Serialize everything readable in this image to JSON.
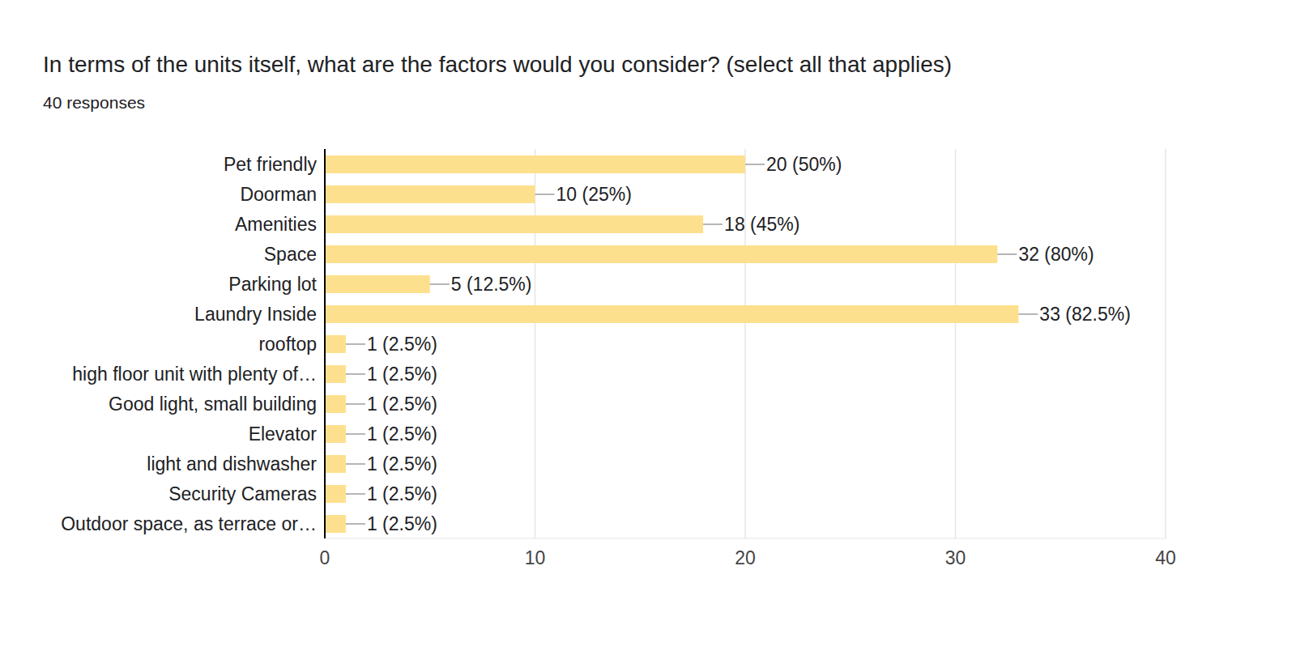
{
  "chart_data": {
    "type": "bar",
    "title": "In terms of the units itself, what are the factors would you consider? (select all that applies)",
    "subtitle": "40 responses",
    "orientation": "horizontal",
    "categories": [
      "Pet friendly",
      "Doorman",
      "Amenities",
      "Space",
      "Parking lot",
      "Laundry Inside",
      "rooftop",
      "high floor unit with plenty of…",
      "Good light, small building",
      "Elevator",
      "light and dishwasher",
      "Security Cameras",
      "Outdoor space, as terrace or…"
    ],
    "values": [
      20,
      10,
      18,
      32,
      5,
      33,
      1,
      1,
      1,
      1,
      1,
      1,
      1
    ],
    "value_labels": [
      "20 (50%)",
      "10 (25%)",
      "18 (45%)",
      "32 (80%)",
      "5 (12.5%)",
      "33 (82.5%)",
      "1 (2.5%)",
      "1 (2.5%)",
      "1 (2.5%)",
      "1 (2.5%)",
      "1 (2.5%)",
      "1 (2.5%)",
      "1 (2.5%)"
    ],
    "color": "#fde08d",
    "xlim": [
      0,
      40
    ],
    "xticks": [
      0,
      10,
      20,
      30,
      40
    ],
    "grid": true,
    "data_labels": true
  }
}
